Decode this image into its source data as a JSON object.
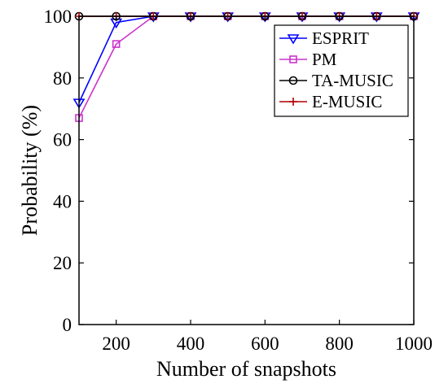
{
  "chart_data": {
    "type": "line",
    "title": "",
    "xlabel": "Number of snapshots",
    "ylabel": "Probability (%)",
    "xlim": [
      100,
      1000
    ],
    "ylim": [
      0,
      100
    ],
    "xticks": [
      200,
      400,
      600,
      800,
      1000
    ],
    "yticks": [
      0,
      20,
      40,
      60,
      80,
      100
    ],
    "grid": false,
    "legend_position": "top-right",
    "x": [
      100,
      200,
      300,
      400,
      500,
      600,
      700,
      800,
      900,
      1000
    ],
    "series": [
      {
        "name": "ESPRIT",
        "color": "#0000ff",
        "marker": "triangle-down",
        "values": [
          72,
          98,
          100,
          100,
          100,
          100,
          100,
          100,
          100,
          100
        ]
      },
      {
        "name": "PM",
        "color": "#cc33cc",
        "marker": "square",
        "values": [
          67,
          91,
          100,
          100,
          100,
          100,
          100,
          100,
          100,
          100
        ]
      },
      {
        "name": "TA-MUSIC",
        "color": "#000000",
        "marker": "circle",
        "values": [
          100,
          100,
          100,
          100,
          100,
          100,
          100,
          100,
          100,
          100
        ]
      },
      {
        "name": "E-MUSIC",
        "color": "#b30000",
        "marker": "plus",
        "values": [
          100,
          100,
          100,
          100,
          100,
          100,
          100,
          100,
          100,
          100
        ]
      }
    ]
  }
}
